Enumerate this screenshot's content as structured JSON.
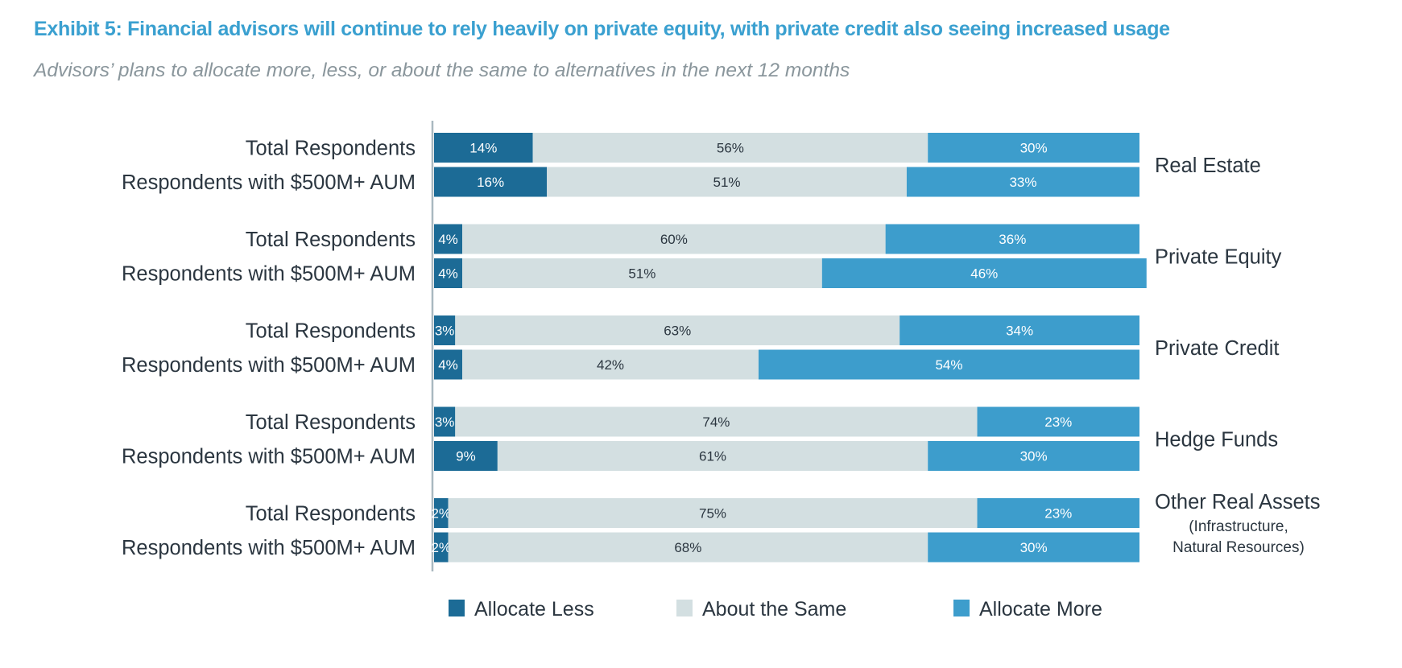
{
  "chart_data": {
    "type": "bar",
    "orientation": "horizontal",
    "stacked": true,
    "title": "Exhibit 5: Financial advisors will continue to rely heavily on private equity, with private credit also seeing increased usage",
    "subtitle": "Advisors’ plans to allocate more, less, or about the same to alternatives in the next 12 months",
    "row_labels": [
      "Total Respondents",
      "Respondents with $500M+ AUM"
    ],
    "groups": [
      {
        "name": "Real Estate",
        "note": "",
        "rows": [
          [
            14,
            56,
            30
          ],
          [
            16,
            51,
            33
          ]
        ]
      },
      {
        "name": "Private Equity",
        "note": "",
        "rows": [
          [
            4,
            60,
            36
          ],
          [
            4,
            51,
            46
          ]
        ]
      },
      {
        "name": "Private Credit",
        "note": "",
        "rows": [
          [
            3,
            63,
            34
          ],
          [
            4,
            42,
            54
          ]
        ]
      },
      {
        "name": "Hedge Funds",
        "note": "",
        "rows": [
          [
            3,
            74,
            23
          ],
          [
            9,
            61,
            30
          ]
        ]
      },
      {
        "name": "Other Real Assets",
        "note": [
          "(Infrastructure,",
          "Natural Resources)"
        ],
        "rows": [
          [
            2,
            75,
            23
          ],
          [
            2,
            68,
            30
          ]
        ]
      }
    ],
    "series": [
      {
        "name": "Allocate Less",
        "color": "#1c6b96",
        "label_color": "#ffffff"
      },
      {
        "name": "About the Same",
        "color": "#d3dfe1",
        "label_color": "#2b3640"
      },
      {
        "name": "Allocate More",
        "color": "#3d9dcc",
        "label_color": "#ffffff"
      }
    ],
    "value_suffix": "%",
    "xlim": [
      0,
      100
    ],
    "legend_position": "bottom",
    "grid": false
  }
}
